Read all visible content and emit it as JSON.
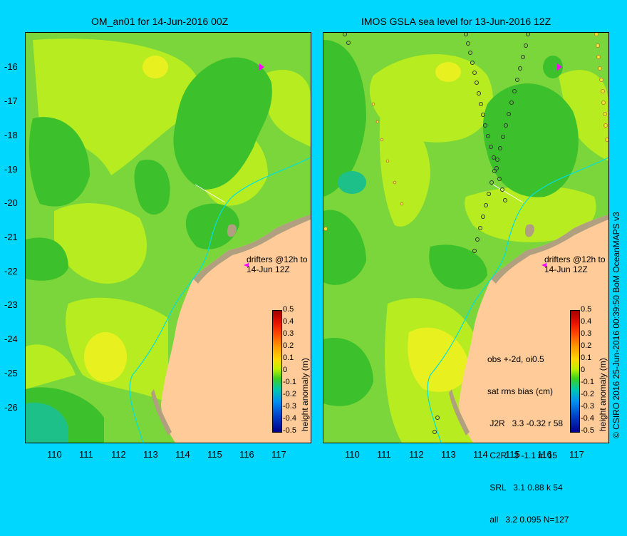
{
  "left_panel": {
    "title": "OM_an01 for 14-Jun-2016 00Z"
  },
  "right_panel": {
    "title": "IMOS GSLA sea level  for 13-Jun-2016 12Z"
  },
  "y_ticks": [
    "-16",
    "-17",
    "-18",
    "-19",
    "-20",
    "-21",
    "-22",
    "-23",
    "-24",
    "-25",
    "-26"
  ],
  "x_ticks": [
    "110",
    "111",
    "112",
    "113",
    "114",
    "115",
    "116",
    "117"
  ],
  "drifter_note": [
    "drifters @12h to",
    "14-Jun 12Z"
  ],
  "colorbar": {
    "title": "height anomaly (m)",
    "ticks": [
      "0.5",
      "0.4",
      "0.3",
      "0.2",
      "0.1",
      "0",
      "-0.1",
      "-0.2",
      "-0.3",
      "-0.4",
      "-0.5"
    ]
  },
  "stats_lines": [
    "obs +-2d, oi0.5",
    "sat rms bias (cm)",
    " J2R   3.3 -0.32 r 58",
    " C2R   3 -1.1 m 15",
    " SRL   3.1 0.88 k 54",
    " all   3.2 0.095 N=127"
  ],
  "credit": "© CSIRO 2016   25-Jun-2016 00:39:50 BoM OceanMAPS v3",
  "colors": {
    "background": "#00d7ff",
    "land": "#ffcc99",
    "field": "#7ad63a",
    "drifter": "#ff00ff",
    "coast_line": "#00e0e0"
  }
}
